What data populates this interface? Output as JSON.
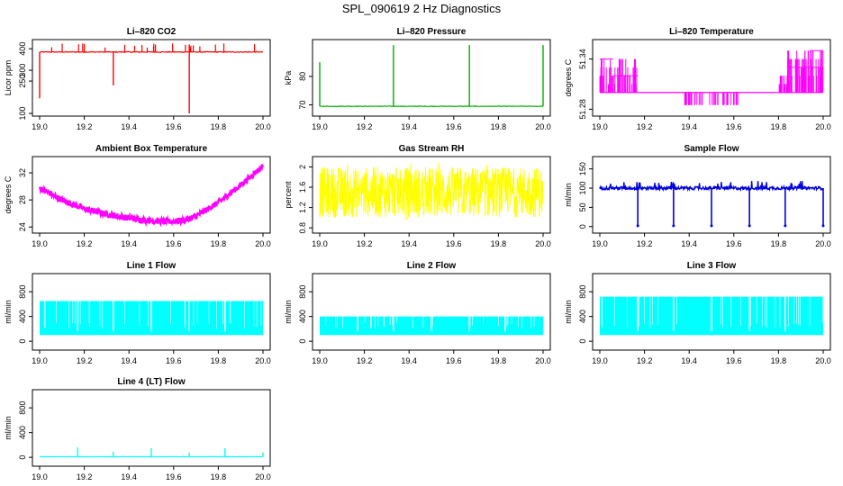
{
  "page": {
    "title": "SPL_090619  2 Hz Diagnostics"
  },
  "chart_data": [
    {
      "type": "line",
      "title": "Li–820 CO2",
      "ylabel": "Licor ppm",
      "xlabel": "",
      "xlim": [
        19.0,
        20.0
      ],
      "ylim": [
        100,
        430
      ],
      "xticks": [
        "19.0",
        "19.2",
        "19.4",
        "19.6",
        "19.8",
        "20.0"
      ],
      "yticks": [
        100,
        250,
        300,
        400
      ],
      "color": "#ff0000",
      "pattern": "co2",
      "base": 385,
      "series": [
        {
          "name": "CO2",
          "spikes": [
            {
              "x": 19.0,
              "y": 170
            },
            {
              "x": 19.33,
              "y": 230
            },
            {
              "x": 19.67,
              "y": 100
            },
            {
              "x": 19.67,
              "y": 420
            }
          ]
        }
      ]
    },
    {
      "type": "line",
      "title": "Li–820 Pressure",
      "ylabel": "kPa",
      "xlabel": "",
      "xlim": [
        19.0,
        20.0
      ],
      "ylim": [
        67,
        92
      ],
      "xticks": [
        "19.0",
        "19.2",
        "19.4",
        "19.6",
        "19.8",
        "20.0"
      ],
      "yticks": [
        70,
        80
      ],
      "color": "#00b000",
      "pattern": "pressure",
      "base": 69.5,
      "series": [
        {
          "name": "Pressure",
          "spikes": [
            {
              "x": 19.0,
              "y": 85
            },
            {
              "x": 19.33,
              "y": 91
            },
            {
              "x": 19.67,
              "y": 91
            },
            {
              "x": 20.0,
              "y": 91
            }
          ]
        }
      ]
    },
    {
      "type": "line",
      "title": "Li–820 Temperature",
      "ylabel": "degrees C",
      "xlabel": "",
      "xlim": [
        19.0,
        20.0
      ],
      "ylim": [
        51.275,
        51.36
      ],
      "xticks": [
        "19.0",
        "19.2",
        "19.4",
        "19.6",
        "19.8",
        "20.0"
      ],
      "yticks": [
        51.28,
        51.34
      ],
      "color": "#ff00ff",
      "pattern": "licortemp",
      "series": [
        {
          "name": "Temperature",
          "levels": [
            51.3,
            51.31,
            51.32,
            51.33,
            51.34,
            51.35
          ]
        }
      ]
    },
    {
      "type": "line",
      "title": "Ambient Box Temperature",
      "ylabel": "degrees C",
      "xlabel": "",
      "xlim": [
        19.0,
        20.0
      ],
      "ylim": [
        23.5,
        34
      ],
      "xticks": [
        "19.0",
        "19.2",
        "19.4",
        "19.6",
        "19.8",
        "20.0"
      ],
      "yticks": [
        24,
        28,
        32
      ],
      "color": "#ff00ff",
      "pattern": "curve",
      "series": [
        {
          "name": "Ambient",
          "x": [
            19.0,
            19.1,
            19.2,
            19.3,
            19.4,
            19.5,
            19.58,
            19.65,
            19.7,
            19.8,
            19.9,
            20.0
          ],
          "y": [
            29.8,
            28.0,
            26.7,
            25.9,
            25.3,
            24.9,
            24.8,
            25.0,
            25.6,
            27.6,
            30.2,
            33.0
          ]
        }
      ]
    },
    {
      "type": "line",
      "title": "Gas Stream RH",
      "ylabel": "percent",
      "xlabel": "",
      "xlim": [
        19.0,
        20.0
      ],
      "ylim": [
        0.75,
        2.15
      ],
      "xticks": [
        "19.0",
        "19.2",
        "19.4",
        "19.6",
        "19.8",
        "20.0"
      ],
      "yticks": [
        0.8,
        1.2,
        1.6,
        2.0
      ],
      "color": "#ffff00",
      "pattern": "noise",
      "series": [
        {
          "name": "RH",
          "low": 1.0,
          "high": 2.0
        }
      ]
    },
    {
      "type": "line",
      "title": "Sample Flow",
      "ylabel": "ml/min",
      "xlabel": "",
      "xlim": [
        19.0,
        20.0
      ],
      "ylim": [
        -10,
        175
      ],
      "xticks": [
        "19.0",
        "19.2",
        "19.4",
        "19.6",
        "19.8",
        "20.0"
      ],
      "yticks": [
        0,
        50,
        100,
        150
      ],
      "color": "#0000e0",
      "pattern": "sampleflow",
      "base": 100,
      "series": [
        {
          "name": "Sample Flow",
          "dips": [
            19.17,
            19.33,
            19.5,
            19.67,
            19.83,
            20.0
          ]
        }
      ]
    },
    {
      "type": "line",
      "title": "Line 1 Flow",
      "ylabel": "ml/min",
      "xlabel": "",
      "xlim": [
        19.0,
        20.0
      ],
      "ylim": [
        -100,
        1050
      ],
      "xticks": [
        "19.0",
        "19.2",
        "19.4",
        "19.6",
        "19.8",
        "20.0"
      ],
      "yticks": [
        0,
        400,
        800
      ],
      "color": "#00ffff",
      "pattern": "band",
      "series": [
        {
          "name": "Line 1",
          "low": 100,
          "high": 650,
          "gaps": [
            19.17,
            19.33,
            19.5,
            19.67,
            19.83
          ]
        }
      ]
    },
    {
      "type": "line",
      "title": "Line 2 Flow",
      "ylabel": "ml/min",
      "xlabel": "",
      "xlim": [
        19.0,
        20.0
      ],
      "ylim": [
        -100,
        1050
      ],
      "xticks": [
        "19.0",
        "19.2",
        "19.4",
        "19.6",
        "19.8",
        "20.0"
      ],
      "yticks": [
        0,
        400,
        800
      ],
      "color": "#00ffff",
      "pattern": "band",
      "series": [
        {
          "name": "Line 2",
          "low": 100,
          "high": 400,
          "gaps": [
            19.17,
            19.33,
            19.5,
            19.67,
            19.83
          ]
        }
      ]
    },
    {
      "type": "line",
      "title": "Line 3 Flow",
      "ylabel": "ml/min",
      "xlabel": "",
      "xlim": [
        19.0,
        20.0
      ],
      "ylim": [
        -100,
        1050
      ],
      "xticks": [
        "19.0",
        "19.2",
        "19.4",
        "19.6",
        "19.8",
        "20.0"
      ],
      "yticks": [
        0,
        400,
        800
      ],
      "color": "#00ffff",
      "pattern": "band",
      "series": [
        {
          "name": "Line 3",
          "low": 100,
          "high": 720,
          "gaps": [
            19.17,
            19.33,
            19.5,
            19.67,
            19.83
          ]
        }
      ]
    },
    {
      "type": "line",
      "title": "Line 4 (LT) Flow",
      "ylabel": "ml/min",
      "xlabel": "",
      "xlim": [
        19.0,
        20.0
      ],
      "ylim": [
        -100,
        1050
      ],
      "xticks": [
        "19.0",
        "19.2",
        "19.4",
        "19.6",
        "19.8",
        "20.0"
      ],
      "yticks": [
        0,
        400,
        800
      ],
      "color": "#00ffff",
      "pattern": "flat",
      "base": 10,
      "series": [
        {
          "name": "Line 4",
          "spikes": [
            {
              "x": 19.17,
              "y": 160
            },
            {
              "x": 19.33,
              "y": 90
            },
            {
              "x": 19.5,
              "y": 150
            },
            {
              "x": 19.67,
              "y": 80
            },
            {
              "x": 19.83,
              "y": 150
            },
            {
              "x": 20.0,
              "y": 80
            }
          ]
        }
      ]
    }
  ]
}
